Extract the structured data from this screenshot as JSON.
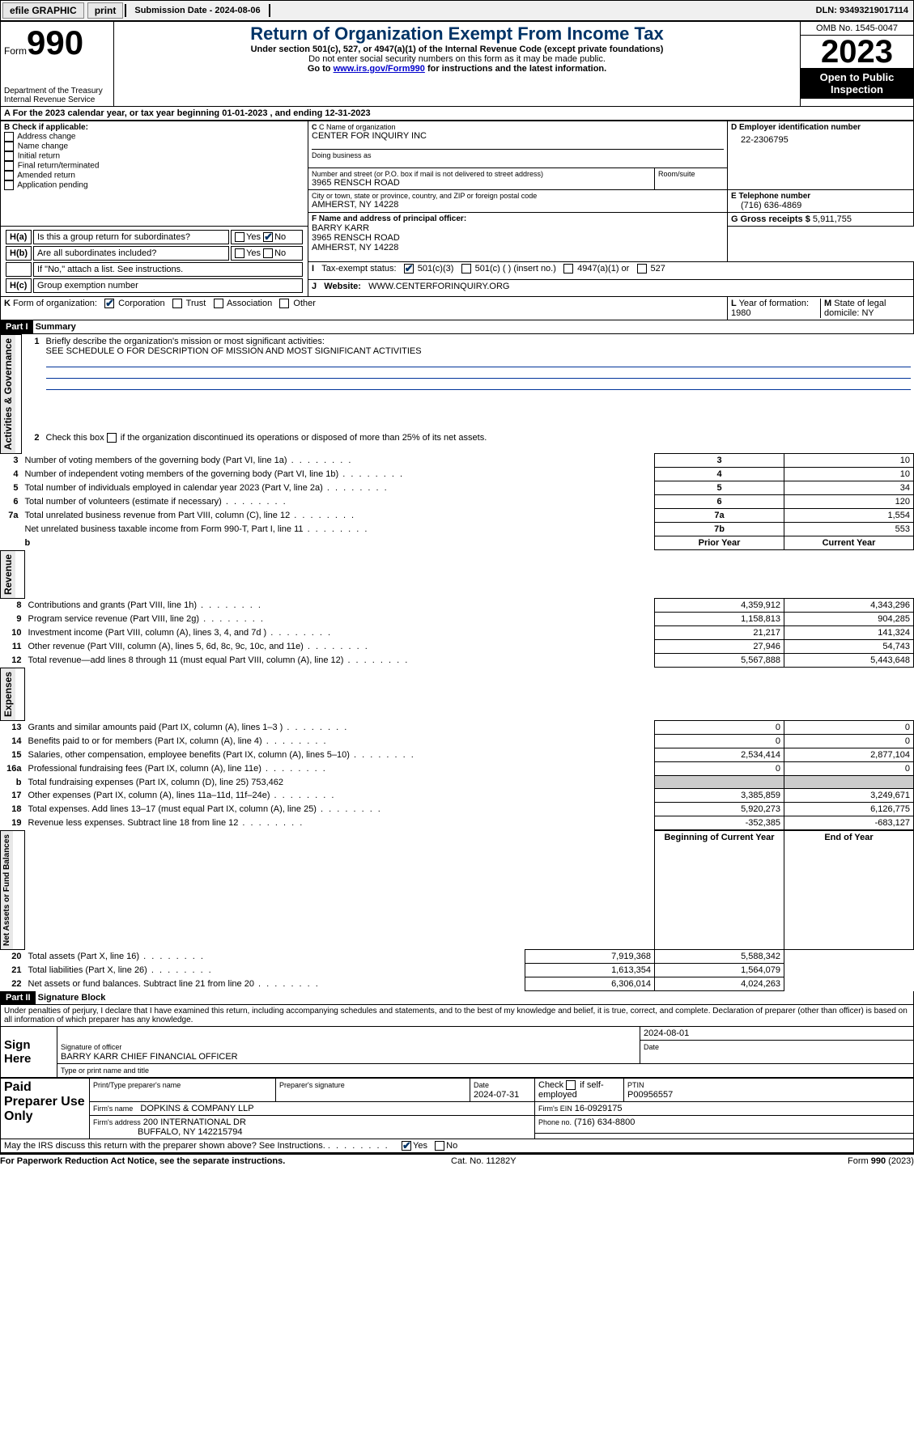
{
  "toolbar": {
    "efile": "efile GRAPHIC",
    "print": "print",
    "submission": "Submission Date - 2024-08-06",
    "dln": "DLN: 93493219017114"
  },
  "header": {
    "form_word": "Form",
    "form_no": "990",
    "dept": "Department of the Treasury",
    "irs": "Internal Revenue Service",
    "title": "Return of Organization Exempt From Income Tax",
    "sub1": "Under section 501(c), 527, or 4947(a)(1) of the Internal Revenue Code (except private foundations)",
    "sub2": "Do not enter social security numbers on this form as it may be made public.",
    "sub3_pre": "Go to ",
    "sub3_link": "www.irs.gov/Form990",
    "sub3_post": " for instructions and the latest information.",
    "omb": "OMB No. 1545-0047",
    "year": "2023",
    "open": "Open to Public Inspection"
  },
  "A": {
    "text": "For the 2023 calendar year, or tax year beginning 01-01-2023  , and ending 12-31-2023"
  },
  "B": {
    "hdr": "B Check if applicable:",
    "opts": [
      "Address change",
      "Name change",
      "Initial return",
      "Final return/terminated",
      "Amended return",
      "Application pending"
    ]
  },
  "C": {
    "name_lbl": "C Name of organization",
    "name": "CENTER FOR INQUIRY INC",
    "dba_lbl": "Doing business as",
    "street_lbl": "Number and street (or P.O. box if mail is not delivered to street address)",
    "room_lbl": "Room/suite",
    "street": "3965 RENSCH ROAD",
    "city_lbl": "City or town, state or province, country, and ZIP or foreign postal code",
    "city": "AMHERST, NY  14228"
  },
  "D": {
    "lbl": "D Employer identification number",
    "val": "22-2306795"
  },
  "E": {
    "lbl": "E Telephone number",
    "val": "(716) 636-4869"
  },
  "G": {
    "lbl": "G Gross receipts $",
    "val": "5,911,755"
  },
  "F": {
    "lbl": "F  Name and address of principal officer:",
    "name": "BARRY KARR",
    "street": "3965 RENSCH ROAD",
    "city": "AMHERST, NY  14228"
  },
  "H": {
    "a": "Is this a group return for subordinates?",
    "b": "Are all subordinates included?",
    "note": "If \"No,\" attach a list. See instructions.",
    "c": "Group exemption number"
  },
  "I": {
    "lbl": "Tax-exempt status:",
    "opts": [
      "501(c)(3)",
      "501(c) (  ) (insert no.)",
      "4947(a)(1) or",
      "527"
    ]
  },
  "J": {
    "lbl": "Website:",
    "val": "WWW.CENTERFORINQUIRY.ORG"
  },
  "K": {
    "lbl": "Form of organization:",
    "opts": [
      "Corporation",
      "Trust",
      "Association",
      "Other"
    ]
  },
  "L": {
    "lbl": "Year of formation:",
    "val": "1980"
  },
  "M": {
    "lbl": "State of legal domicile:",
    "val": "NY"
  },
  "part1": {
    "bar": "Part I",
    "title": "Summary",
    "l1": "Briefly describe the organization's mission or most significant activities:",
    "l1v": "SEE SCHEDULE O FOR DESCRIPTION OF MISSION AND MOST SIGNIFICANT ACTIVITIES",
    "l2": "Check this box      if the organization discontinued its operations or disposed of more than 25% of its net assets.",
    "rows_gov": [
      {
        "n": "3",
        "d": "Number of voting members of the governing body (Part VI, line 1a)",
        "box": "3",
        "v": "10"
      },
      {
        "n": "4",
        "d": "Number of independent voting members of the governing body (Part VI, line 1b)",
        "box": "4",
        "v": "10"
      },
      {
        "n": "5",
        "d": "Total number of individuals employed in calendar year 2023 (Part V, line 2a)",
        "box": "5",
        "v": "34"
      },
      {
        "n": "6",
        "d": "Total number of volunteers (estimate if necessary)",
        "box": "6",
        "v": "120"
      },
      {
        "n": "7a",
        "d": "Total unrelated business revenue from Part VIII, column (C), line 12",
        "box": "7a",
        "v": "1,554"
      },
      {
        "n": "",
        "d": "Net unrelated business taxable income from Form 990-T, Part I, line 11",
        "box": "7b",
        "v": "553"
      }
    ],
    "prior_hdr": "Prior Year",
    "curr_hdr": "Current Year",
    "rows_rev": [
      {
        "n": "8",
        "d": "Contributions and grants (Part VIII, line 1h)",
        "p": "4,359,912",
        "c": "4,343,296"
      },
      {
        "n": "9",
        "d": "Program service revenue (Part VIII, line 2g)",
        "p": "1,158,813",
        "c": "904,285"
      },
      {
        "n": "10",
        "d": "Investment income (Part VIII, column (A), lines 3, 4, and 7d )",
        "p": "21,217",
        "c": "141,324"
      },
      {
        "n": "11",
        "d": "Other revenue (Part VIII, column (A), lines 5, 6d, 8c, 9c, 10c, and 11e)",
        "p": "27,946",
        "c": "54,743"
      },
      {
        "n": "12",
        "d": "Total revenue—add lines 8 through 11 (must equal Part VIII, column (A), line 12)",
        "p": "5,567,888",
        "c": "5,443,648"
      }
    ],
    "rows_exp": [
      {
        "n": "13",
        "d": "Grants and similar amounts paid (Part IX, column (A), lines 1–3 )",
        "p": "0",
        "c": "0"
      },
      {
        "n": "14",
        "d": "Benefits paid to or for members (Part IX, column (A), line 4)",
        "p": "0",
        "c": "0"
      },
      {
        "n": "15",
        "d": "Salaries, other compensation, employee benefits (Part IX, column (A), lines 5–10)",
        "p": "2,534,414",
        "c": "2,877,104"
      },
      {
        "n": "16a",
        "d": "Professional fundraising fees (Part IX, column (A), line 11e)",
        "p": "0",
        "c": "0"
      },
      {
        "n": "b",
        "d": "Total fundraising expenses (Part IX, column (D), line 25) 753,462",
        "p": "",
        "c": "",
        "grey": true
      },
      {
        "n": "17",
        "d": "Other expenses (Part IX, column (A), lines 11a–11d, 11f–24e)",
        "p": "3,385,859",
        "c": "3,249,671"
      },
      {
        "n": "18",
        "d": "Total expenses. Add lines 13–17 (must equal Part IX, column (A), line 25)",
        "p": "5,920,273",
        "c": "6,126,775"
      },
      {
        "n": "19",
        "d": "Revenue less expenses. Subtract line 18 from line 12",
        "p": "-352,385",
        "c": "-683,127"
      }
    ],
    "beg_hdr": "Beginning of Current Year",
    "end_hdr": "End of Year",
    "rows_net": [
      {
        "n": "20",
        "d": "Total assets (Part X, line 16)",
        "p": "7,919,368",
        "c": "5,588,342"
      },
      {
        "n": "21",
        "d": "Total liabilities (Part X, line 26)",
        "p": "1,613,354",
        "c": "1,564,079"
      },
      {
        "n": "22",
        "d": "Net assets or fund balances. Subtract line 21 from line 20",
        "p": "6,306,014",
        "c": "4,024,263"
      }
    ],
    "vlabels": {
      "gov": "Activities & Governance",
      "rev": "Revenue",
      "exp": "Expenses",
      "net": "Net Assets or Fund Balances"
    }
  },
  "part2": {
    "bar": "Part II",
    "title": "Signature Block",
    "decl": "Under penalties of perjury, I declare that I have examined this return, including accompanying schedules and statements, and to the best of my knowledge and belief, it is true, correct, and complete. Declaration of preparer (other than officer) is based on all information of which preparer has any knowledge.",
    "sign_here": "Sign Here",
    "sig_date": "2024-08-01",
    "sig_lbl": "Signature of officer",
    "date_lbl": "Date",
    "officer": "BARRY KARR  CHIEF FINANCIAL OFFICER",
    "type_lbl": "Type or print name and title",
    "paid": "Paid Preparer Use Only",
    "p_name_lbl": "Print/Type preparer's name",
    "p_sig_lbl": "Preparer's signature",
    "p_date_lbl": "Date",
    "p_date": "2024-07-31",
    "p_chk_lbl": "Check       if self-employed",
    "ptin_lbl": "PTIN",
    "ptin": "P00956557",
    "firm_name_lbl": "Firm's name",
    "firm_name": "DOPKINS & COMPANY LLP",
    "firm_ein_lbl": "Firm's EIN",
    "firm_ein": "16-0929175",
    "firm_addr_lbl": "Firm's address",
    "firm_addr1": "200 INTERNATIONAL DR",
    "firm_addr2": "BUFFALO, NY  142215794",
    "phone_lbl": "Phone no.",
    "phone": "(716) 634-8800",
    "may": "May the IRS discuss this return with the preparer shown above? See Instructions."
  },
  "footer": {
    "pra": "For Paperwork Reduction Act Notice, see the separate instructions.",
    "cat": "Cat. No. 11282Y",
    "form": "Form 990 (2023)"
  },
  "yesno": {
    "yes": "Yes",
    "no": "No"
  }
}
